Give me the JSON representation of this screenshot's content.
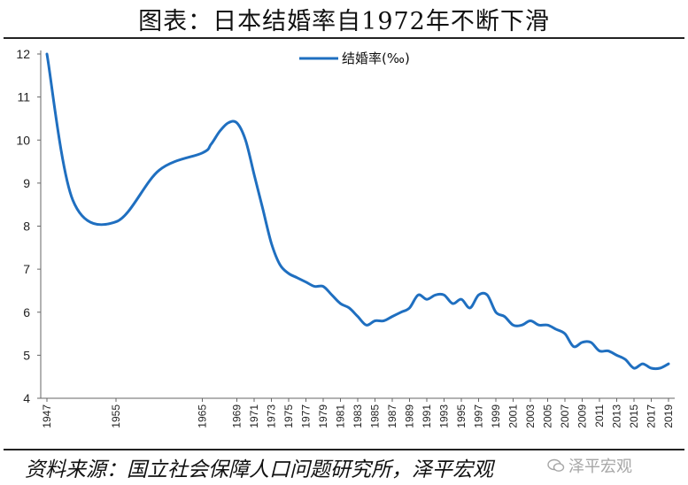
{
  "title": "图表：日本结婚率自1972年不断下滑",
  "source": "资料来源：国立社会保障人口问题研究所，泽平宏观",
  "watermark": "泽平宏观",
  "chart_data": {
    "type": "line",
    "title": "图表：日本结婚率自1972年不断下滑",
    "xlabel": "",
    "ylabel": "",
    "ylim": [
      4,
      12
    ],
    "yticks": [
      4,
      5,
      6,
      7,
      8,
      9,
      10,
      11,
      12
    ],
    "xlim": [
      1947,
      2019
    ],
    "xticks": [
      1947,
      1955,
      1965,
      1969,
      1971,
      1973,
      1975,
      1977,
      1979,
      1981,
      1983,
      1985,
      1987,
      1989,
      1991,
      1993,
      1995,
      1997,
      1999,
      2001,
      2003,
      2005,
      2007,
      2009,
      2011,
      2013,
      2015,
      2017,
      2019
    ],
    "grid": false,
    "legend": "top-center",
    "color": "#1f6fc0",
    "series": [
      {
        "name": "结婚率(‰)",
        "x": [
          1947,
          1950,
          1955,
          1960,
          1965,
          1966,
          1967,
          1968,
          1969,
          1970,
          1971,
          1972,
          1973,
          1974,
          1975,
          1976,
          1977,
          1978,
          1979,
          1980,
          1981,
          1982,
          1983,
          1984,
          1985,
          1986,
          1987,
          1988,
          1989,
          1990,
          1991,
          1992,
          1993,
          1994,
          1995,
          1996,
          1997,
          1998,
          1999,
          2000,
          2001,
          2002,
          2003,
          2004,
          2005,
          2006,
          2007,
          2008,
          2009,
          2010,
          2011,
          2012,
          2013,
          2014,
          2015,
          2016,
          2017,
          2018,
          2019
        ],
        "values": [
          12.0,
          8.6,
          8.1,
          9.3,
          9.7,
          9.9,
          10.2,
          10.4,
          10.4,
          10.0,
          9.2,
          8.4,
          7.6,
          7.1,
          6.9,
          6.8,
          6.7,
          6.6,
          6.6,
          6.4,
          6.2,
          6.1,
          5.9,
          5.7,
          5.8,
          5.8,
          5.9,
          6.0,
          6.1,
          6.4,
          6.3,
          6.4,
          6.4,
          6.2,
          6.3,
          6.1,
          6.4,
          6.4,
          6.0,
          5.9,
          5.7,
          5.7,
          5.8,
          5.7,
          5.7,
          5.6,
          5.5,
          5.2,
          5.3,
          5.3,
          5.1,
          5.1,
          5.0,
          4.9,
          4.7,
          4.8,
          4.7,
          4.7,
          4.8
        ]
      }
    ]
  }
}
